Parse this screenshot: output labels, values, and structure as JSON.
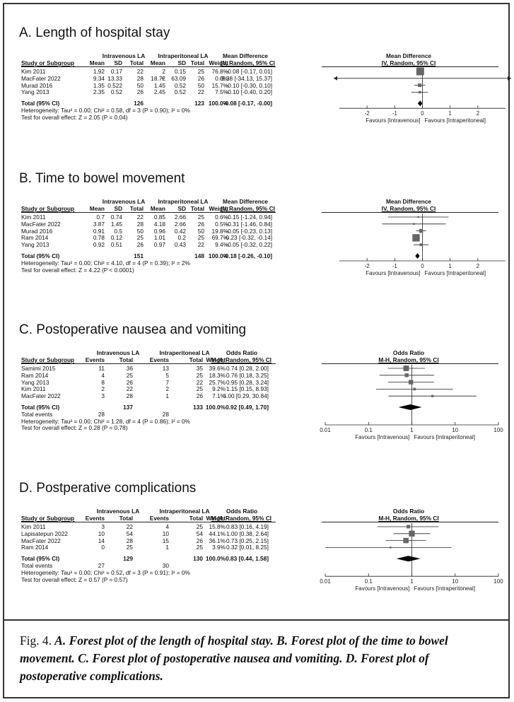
{
  "caption": {
    "prefix": "Fig. 4. ",
    "text": "A. Forest plot of the length of hospital stay. B. Forest plot of the time to bowel movement. C. Forest plot of postoperative nausea and vomiting. D. Forest plot of postoperative complications."
  },
  "colors": {
    "square": "#666666",
    "line": "#222222",
    "diamond": "#000000"
  },
  "chart_data": [
    {
      "type": "forest",
      "measure": "mean",
      "title": "A. Length of hospital stay",
      "group1": "Intravenous LA",
      "group2": "Intraperitoneal LA",
      "col_headers": [
        "Study or Subgroup",
        "Mean",
        "SD",
        "Total",
        "Mean",
        "SD",
        "Total",
        "Weight"
      ],
      "effect_group": "Mean Difference",
      "effect_method": "IV, Random, 95% CI",
      "plot_header": "Mean Difference",
      "plot_method": "IV, Random, 95% CI",
      "studies": [
        {
          "name": "Kim 2011",
          "g1": [
            "1.92",
            "0.17",
            "22"
          ],
          "g2": [
            "2",
            "0.15",
            "25"
          ],
          "weight": "76.8%",
          "effect": "-0.08 [-0.17, 0.01]",
          "est": -0.08,
          "lo": -0.17,
          "hi": 0.01,
          "w": 76.8
        },
        {
          "name": "MacFater 2022",
          "g1": [
            "9.34",
            "13.33",
            "28"
          ],
          "g2": [
            "18.72",
            "63.09",
            "26"
          ],
          "weight": "0.0%",
          "effect": "-9.38 [-34.13, 15.37]",
          "est": -9.38,
          "lo": -34.13,
          "hi": 15.37,
          "w": 0.0
        },
        {
          "name": "Murad 2016",
          "g1": [
            "1.35",
            "0.522",
            "50"
          ],
          "g2": [
            "1.45",
            "0.52",
            "50"
          ],
          "weight": "15.7%",
          "effect": "-0.10 [-0.30, 0.10]",
          "est": -0.1,
          "lo": -0.3,
          "hi": 0.1,
          "w": 15.7
        },
        {
          "name": "Yang 2013",
          "g1": [
            "2.35",
            "0.52",
            "26"
          ],
          "g2": [
            "2.45",
            "0.52",
            "22"
          ],
          "weight": "7.5%",
          "effect": "-0.10 [-0.40, 0.20]",
          "est": -0.1,
          "lo": -0.4,
          "hi": 0.2,
          "w": 7.5
        }
      ],
      "total": {
        "label": "Total (95% CI)",
        "n1": "126",
        "n2": "123",
        "weight": "100.0%",
        "effect": "-0.08 [-0.17, -0.00]",
        "est": -0.08,
        "lo": -0.17,
        "hi": -0.0
      },
      "heterogeneity": "Heterogeneity: Tau² = 0.00; Chi² = 0.58, df = 3 (P = 0.90); I² = 0%",
      "overall": "Test for overall effect: Z = 2.05 (P = 0.04)",
      "axis": {
        "scale": "linear",
        "min": -3,
        "max": 3,
        "ticks": [
          -2,
          -1,
          0,
          1,
          2
        ],
        "tick_labels": [
          "-2",
          "-1",
          "0",
          "1",
          "2"
        ],
        "null": 0
      },
      "favours_left": "Favours [Intravenous]",
      "favours_right": "Favours [Intraperitoneal]"
    },
    {
      "type": "forest",
      "measure": "mean",
      "title": "B. Time to bowel movement",
      "group1": "Intravenous LA",
      "group2": "Intraperitoneal LA",
      "col_headers": [
        "Study or Subgroup",
        "Mean",
        "SD",
        "Total",
        "Mean",
        "SD",
        "Total",
        "Weight"
      ],
      "effect_group": "Mean Difference",
      "effect_method": "IV, Random, 95% CI",
      "plot_header": "Mean Difference",
      "plot_method": "IV, Random, 95% CI",
      "studies": [
        {
          "name": "Kim 2011",
          "g1": [
            "0.7",
            "0.74",
            "22"
          ],
          "g2": [
            "0.85",
            "2.66",
            "25"
          ],
          "weight": "0.6%",
          "effect": "-0.15 [-1.24, 0.94]",
          "est": -0.15,
          "lo": -1.24,
          "hi": 0.94,
          "w": 0.6
        },
        {
          "name": "MacFater 2022",
          "g1": [
            "3.87",
            "1.45",
            "28"
          ],
          "g2": [
            "4.18",
            "2.66",
            "26"
          ],
          "weight": "0.5%",
          "effect": "-0.31 [-1.46, 0.84]",
          "est": -0.31,
          "lo": -1.46,
          "hi": 0.84,
          "w": 0.5
        },
        {
          "name": "Murad 2016",
          "g1": [
            "0.91",
            "0.5",
            "50"
          ],
          "g2": [
            "0.96",
            "0.42",
            "50"
          ],
          "weight": "19.8%",
          "effect": "-0.05 [-0.23, 0.13]",
          "est": -0.05,
          "lo": -0.23,
          "hi": 0.13,
          "w": 19.8
        },
        {
          "name": "Ram 2014",
          "g1": [
            "0.78",
            "0.12",
            "25"
          ],
          "g2": [
            "1.01",
            "0.2",
            "25"
          ],
          "weight": "69.7%",
          "effect": "-0.23 [-0.32, -0.14]",
          "est": -0.23,
          "lo": -0.32,
          "hi": -0.14,
          "w": 69.7
        },
        {
          "name": "Yang 2013",
          "g1": [
            "0.92",
            "0.51",
            "26"
          ],
          "g2": [
            "0.97",
            "0.43",
            "22"
          ],
          "weight": "9.4%",
          "effect": "-0.05 [-0.32, 0.22]",
          "est": -0.05,
          "lo": -0.32,
          "hi": 0.22,
          "w": 9.4
        }
      ],
      "total": {
        "label": "Total (95% CI)",
        "n1": "151",
        "n2": "148",
        "weight": "100.0%",
        "effect": "-0.18 [-0.26, -0.10]",
        "est": -0.18,
        "lo": -0.26,
        "hi": -0.1
      },
      "heterogeneity": "Heterogeneity: Tau² = 0.00; Chi² = 4.10, df = 4 (P = 0.39); I² = 2%",
      "overall": "Test for overall effect: Z = 4.22 (P < 0.0001)",
      "axis": {
        "scale": "linear",
        "min": -3,
        "max": 3,
        "ticks": [
          -2,
          -1,
          0,
          1,
          2
        ],
        "tick_labels": [
          "-2",
          "-1",
          "0",
          "1",
          "2"
        ],
        "null": 0
      },
      "favours_left": "Favours [Intravenous]",
      "favours_right": "Favours [Intraperitoneal]"
    },
    {
      "type": "forest",
      "measure": "binary",
      "title": "C. Postoperative nausea and vomiting",
      "group1": "Intravenous LA",
      "group2": "Intraperitoneal LA",
      "col_headers": [
        "Study or Subgroup",
        "Events",
        "Total",
        "Events",
        "Total",
        "Weight"
      ],
      "effect_group": "Odds Ratio",
      "effect_method": "M-H, Random, 95% CI",
      "plot_header": "Odds Ratio",
      "plot_method": "M-H, Random, 95% CI",
      "studies": [
        {
          "name": "Samimi 2015",
          "g1": [
            "11",
            "36"
          ],
          "g2": [
            "13",
            "35"
          ],
          "weight": "39.6%",
          "effect": "0.74 [0.28, 2.00]",
          "est": 0.74,
          "lo": 0.28,
          "hi": 2.0,
          "w": 39.6
        },
        {
          "name": "Ram 2014",
          "g1": [
            "4",
            "25"
          ],
          "g2": [
            "5",
            "25"
          ],
          "weight": "18.3%",
          "effect": "0.76 [0.18, 3.25]",
          "est": 0.76,
          "lo": 0.18,
          "hi": 3.25,
          "w": 18.3
        },
        {
          "name": "Yang 2013",
          "g1": [
            "8",
            "26"
          ],
          "g2": [
            "7",
            "22"
          ],
          "weight": "25.7%",
          "effect": "0.95 [0.28, 3.24]",
          "est": 0.95,
          "lo": 0.28,
          "hi": 3.24,
          "w": 25.7
        },
        {
          "name": "Kim 2011",
          "g1": [
            "2",
            "22"
          ],
          "g2": [
            "2",
            "25"
          ],
          "weight": "9.2%",
          "effect": "1.15 [0.15, 8.93]",
          "est": 1.15,
          "lo": 0.15,
          "hi": 8.93,
          "w": 9.2
        },
        {
          "name": "MacFater 2022",
          "g1": [
            "3",
            "28"
          ],
          "g2": [
            "1",
            "26"
          ],
          "weight": "7.1%",
          "effect": "3.00 [0.29, 30.84]",
          "est": 3.0,
          "lo": 0.29,
          "hi": 30.84,
          "w": 7.1
        }
      ],
      "total": {
        "label": "Total (95% CI)",
        "n1": "137",
        "n2": "133",
        "weight": "100.0%",
        "effect": "0.92 [0.49, 1.70]",
        "est": 0.92,
        "lo": 0.49,
        "hi": 1.7
      },
      "total_events": {
        "label": "Total events",
        "e1": "28",
        "e2": "28"
      },
      "heterogeneity": "Heterogeneity: Tau² = 0.00; Chi² = 1.28, df = 4 (P = 0.86); I² = 0%",
      "overall": "Test for overall effect: Z = 0.28 (P = 0.78)",
      "axis": {
        "scale": "log",
        "min": 0.01,
        "max": 100,
        "ticks": [
          0.01,
          0.1,
          1,
          10,
          100
        ],
        "tick_labels": [
          "0.01",
          "0.1",
          "1",
          "10",
          "100"
        ],
        "null": 1
      },
      "favours_left": "Favours [Intravenous]",
      "favours_right": "Favours [Intraperitoneal]"
    },
    {
      "type": "forest",
      "measure": "binary",
      "title": "D. Postperative complications",
      "group1": "Intravenous LA",
      "group2": "Intraperitoneal LA",
      "col_headers": [
        "Study or Subgroup",
        "Events",
        "Total",
        "Events",
        "Total",
        "Weight"
      ],
      "effect_group": "Odds Ratio",
      "effect_method": "M-H, Random, 95% CI",
      "plot_header": "Odds Ratio",
      "plot_method": "M-H, Random, 95% CI",
      "studies": [
        {
          "name": "Kim 2011",
          "g1": [
            "3",
            "22"
          ],
          "g2": [
            "4",
            "25"
          ],
          "weight": "15.8%",
          "effect": "0.83 [0.16, 4.19]",
          "est": 0.83,
          "lo": 0.16,
          "hi": 4.19,
          "w": 15.8
        },
        {
          "name": "Lapisatepun 2022",
          "g1": [
            "10",
            "54"
          ],
          "g2": [
            "10",
            "54"
          ],
          "weight": "44.1%",
          "effect": "1.00 [0.38, 2.64]",
          "est": 1.0,
          "lo": 0.38,
          "hi": 2.64,
          "w": 44.1
        },
        {
          "name": "MacFater 2022",
          "g1": [
            "14",
            "28"
          ],
          "g2": [
            "15",
            "26"
          ],
          "weight": "36.1%",
          "effect": "0.73 [0.25, 2.15]",
          "est": 0.73,
          "lo": 0.25,
          "hi": 2.15,
          "w": 36.1
        },
        {
          "name": "Ram 2014",
          "g1": [
            "0",
            "25"
          ],
          "g2": [
            "1",
            "25"
          ],
          "weight": "3.9%",
          "effect": "0.32 [0.01, 8.25]",
          "est": 0.32,
          "lo": 0.01,
          "hi": 8.25,
          "w": 3.9
        }
      ],
      "total": {
        "label": "Total (95% CI)",
        "n1": "129",
        "n2": "130",
        "weight": "100.0%",
        "effect": "0.83 [0.44, 1.58]",
        "est": 0.83,
        "lo": 0.44,
        "hi": 1.58
      },
      "total_events": {
        "label": "Total events",
        "e1": "27",
        "e2": "30"
      },
      "heterogeneity": "Heterogeneity: Tau² = 0.00; Chi² = 0.52, df = 3 (P = 0.91); I² = 0%",
      "overall": "Test for overall effect: Z = 0.57 (P = 0.57)",
      "axis": {
        "scale": "log",
        "min": 0.01,
        "max": 100,
        "ticks": [
          0.01,
          0.1,
          1,
          10,
          100
        ],
        "tick_labels": [
          "0.01",
          "0.1",
          "1",
          "10",
          "100"
        ],
        "null": 1
      },
      "favours_left": "Favours [Intravenous]",
      "favours_right": "Favours [Intraperitoneal]"
    }
  ]
}
